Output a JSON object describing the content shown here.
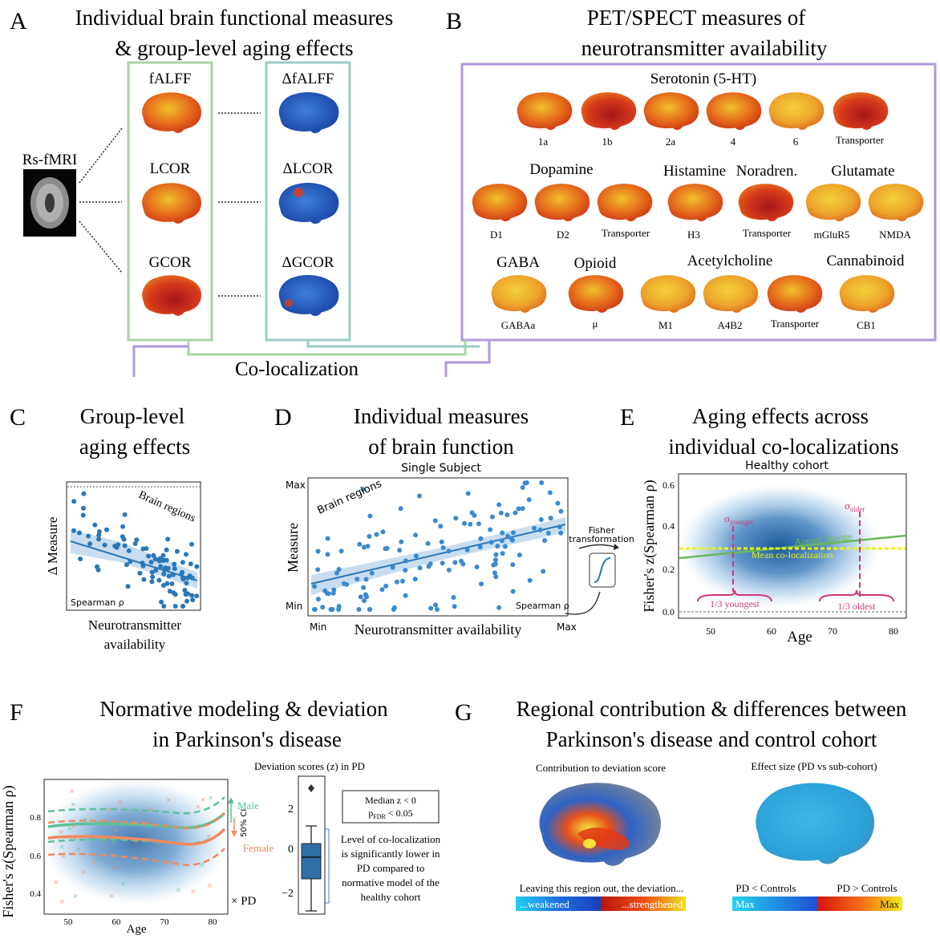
{
  "panelA": {
    "letter": "A",
    "title_line1": "Individual brain functional measures",
    "title_line2": "& group-level aging effects",
    "input_label": "Rs-fMRI",
    "measures": [
      "fALFF",
      "LCOR",
      "GCOR"
    ],
    "deltas": [
      "ΔfALFF",
      "ΔLCOR",
      "ΔGCOR"
    ]
  },
  "panelB": {
    "letter": "B",
    "title_line1": "PET/SPECT measures of",
    "title_line2": "neurotransmitter availability",
    "group_serotonin": "Serotonin (5-HT)",
    "serotonin_labels": [
      "1a",
      "1b",
      "2a",
      "4",
      "6",
      "Transporter"
    ],
    "group_dopamine": "Dopamine",
    "group_histamine": "Histamine",
    "group_noradren": "Noradren.",
    "group_glutamate": "Glutamate",
    "row2_labels": [
      "D1",
      "D2",
      "Transporter",
      "H3",
      "Transporter",
      "mGluR5",
      "NMDA"
    ],
    "group_gaba": "GABA",
    "group_opioid": "Opioid",
    "group_acetylcholine": "Acetylcholine",
    "group_cannabinoid": "Cannabinoid",
    "row3_labels": [
      "GABAa",
      "μ",
      "M1",
      "A4B2",
      "Transporter",
      "CB1"
    ]
  },
  "colocalization": "Co-localization",
  "panelC": {
    "letter": "C",
    "title_line1": "Group-level",
    "title_line2": "aging effects",
    "ylabel": "Δ Measure",
    "xlabel_line1": "Neurotransmitter",
    "xlabel_line2": "availability",
    "annotation": "Brain regions",
    "corner": "Spearman ρ"
  },
  "panelD": {
    "letter": "D",
    "title_line1": "Individual measures",
    "title_line2": "of brain function",
    "subtitle": "Single Subject",
    "ylabel": "Measure",
    "xlabel": "Neurotransmitter availability",
    "ymax": "Max",
    "ymin": "Min",
    "xmin": "Min",
    "xmax": "Max",
    "annotation": "Brain regions",
    "corner": "Spearman ρ",
    "fisher_line1": "Fisher",
    "fisher_line2": "transformation"
  },
  "panelE": {
    "letter": "E",
    "title_line1": "Aging effects across",
    "title_line2": "individual co-localizations",
    "subtitle": "Healthy cohort",
    "ylabel": "Fisher's z(Spearman ρ)",
    "xlabel": "Age",
    "xticks": [
      "50",
      "60",
      "70",
      "80"
    ],
    "yticks": [
      "0.0",
      "0.2",
      "0.4",
      "0.6"
    ],
    "sigma": "σ",
    "sigma_younger_sub": "younger",
    "sigma_older_sub": "older",
    "annual_change": "Annual change",
    "mean_coloc": "Mean co-localization",
    "youngest": "1/3 youngest",
    "oldest": "1/3 oldest",
    "colors": {
      "density": "#2a6db3",
      "trend": "#66bb55",
      "mean": "#f2f20a",
      "sigma": "#d0357a"
    }
  },
  "panelF": {
    "letter": "F",
    "title_line1": "Normative modeling & deviation",
    "title_line2": "in Parkinson's disease",
    "ylabel": "Fisher's z(Spearman ρ)",
    "xlabel": "Age",
    "xticks": [
      "50",
      "60",
      "70",
      "80"
    ],
    "yticks": [
      "0.4",
      "0.6",
      "0.8"
    ],
    "male": "Male",
    "female": "Female",
    "ci": "50% CI",
    "pd": "× PD",
    "box_title": "Deviation scores (z) in PD",
    "box_yticks": [
      "2",
      "0",
      "−2"
    ],
    "stats_line1": "Median z < 0",
    "stats_line2_main": "p",
    "stats_line2_sub": "FDR",
    "stats_line2_rest": " < 0.05",
    "note": [
      "Level of co-localization",
      "is significantly lower in",
      "PD compared to",
      "normative model of the",
      "healthy cohort"
    ],
    "colors": {
      "male": "#5cc19a",
      "female": "#f08a5d"
    }
  },
  "panelG": {
    "letter": "G",
    "title_line1": "Regional contribution & differences between",
    "title_line2": "Parkinson's disease and control cohort",
    "left_title": "Contribution to deviation score",
    "right_title": "Effect size (PD vs sub-cohort)",
    "left_caption": "Leaving this region out, the deviation...",
    "weakened": "...weakened",
    "strengthened": "...strengthened",
    "pd_less": "PD < Controls",
    "pd_more": "PD > Controls",
    "max_left": "Max",
    "max_right": "Max"
  }
}
